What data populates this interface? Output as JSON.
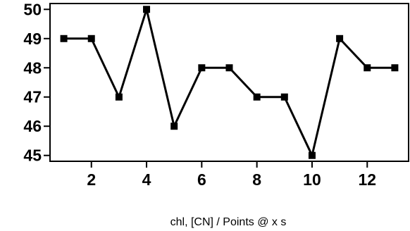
{
  "chart_data": {
    "type": "line",
    "x": [
      1,
      2,
      3,
      4,
      5,
      6,
      7,
      8,
      9,
      10,
      11,
      12,
      13
    ],
    "series": [
      {
        "values": [
          49,
          49,
          47,
          50,
          46,
          48,
          48,
          47,
          47,
          45,
          49,
          48,
          48
        ]
      }
    ],
    "title": "",
    "xlabel": "chl, [CN] / Points @ x s",
    "ylabel": "",
    "xlim": [
      0.5,
      13.5
    ],
    "ylim": [
      44.8,
      50.2
    ],
    "xticks": [
      2,
      4,
      6,
      8,
      10,
      12
    ],
    "yticks": [
      45,
      46,
      47,
      48,
      49,
      50
    ],
    "xtick_labels": [
      "2",
      "4",
      "6",
      "8",
      "10",
      "12"
    ],
    "ytick_labels": [
      "45",
      "46",
      "47",
      "48",
      "49",
      "50"
    ],
    "marker": "square",
    "grid": false,
    "legend": false,
    "line_color": "#000000",
    "marker_color": "#000000"
  }
}
